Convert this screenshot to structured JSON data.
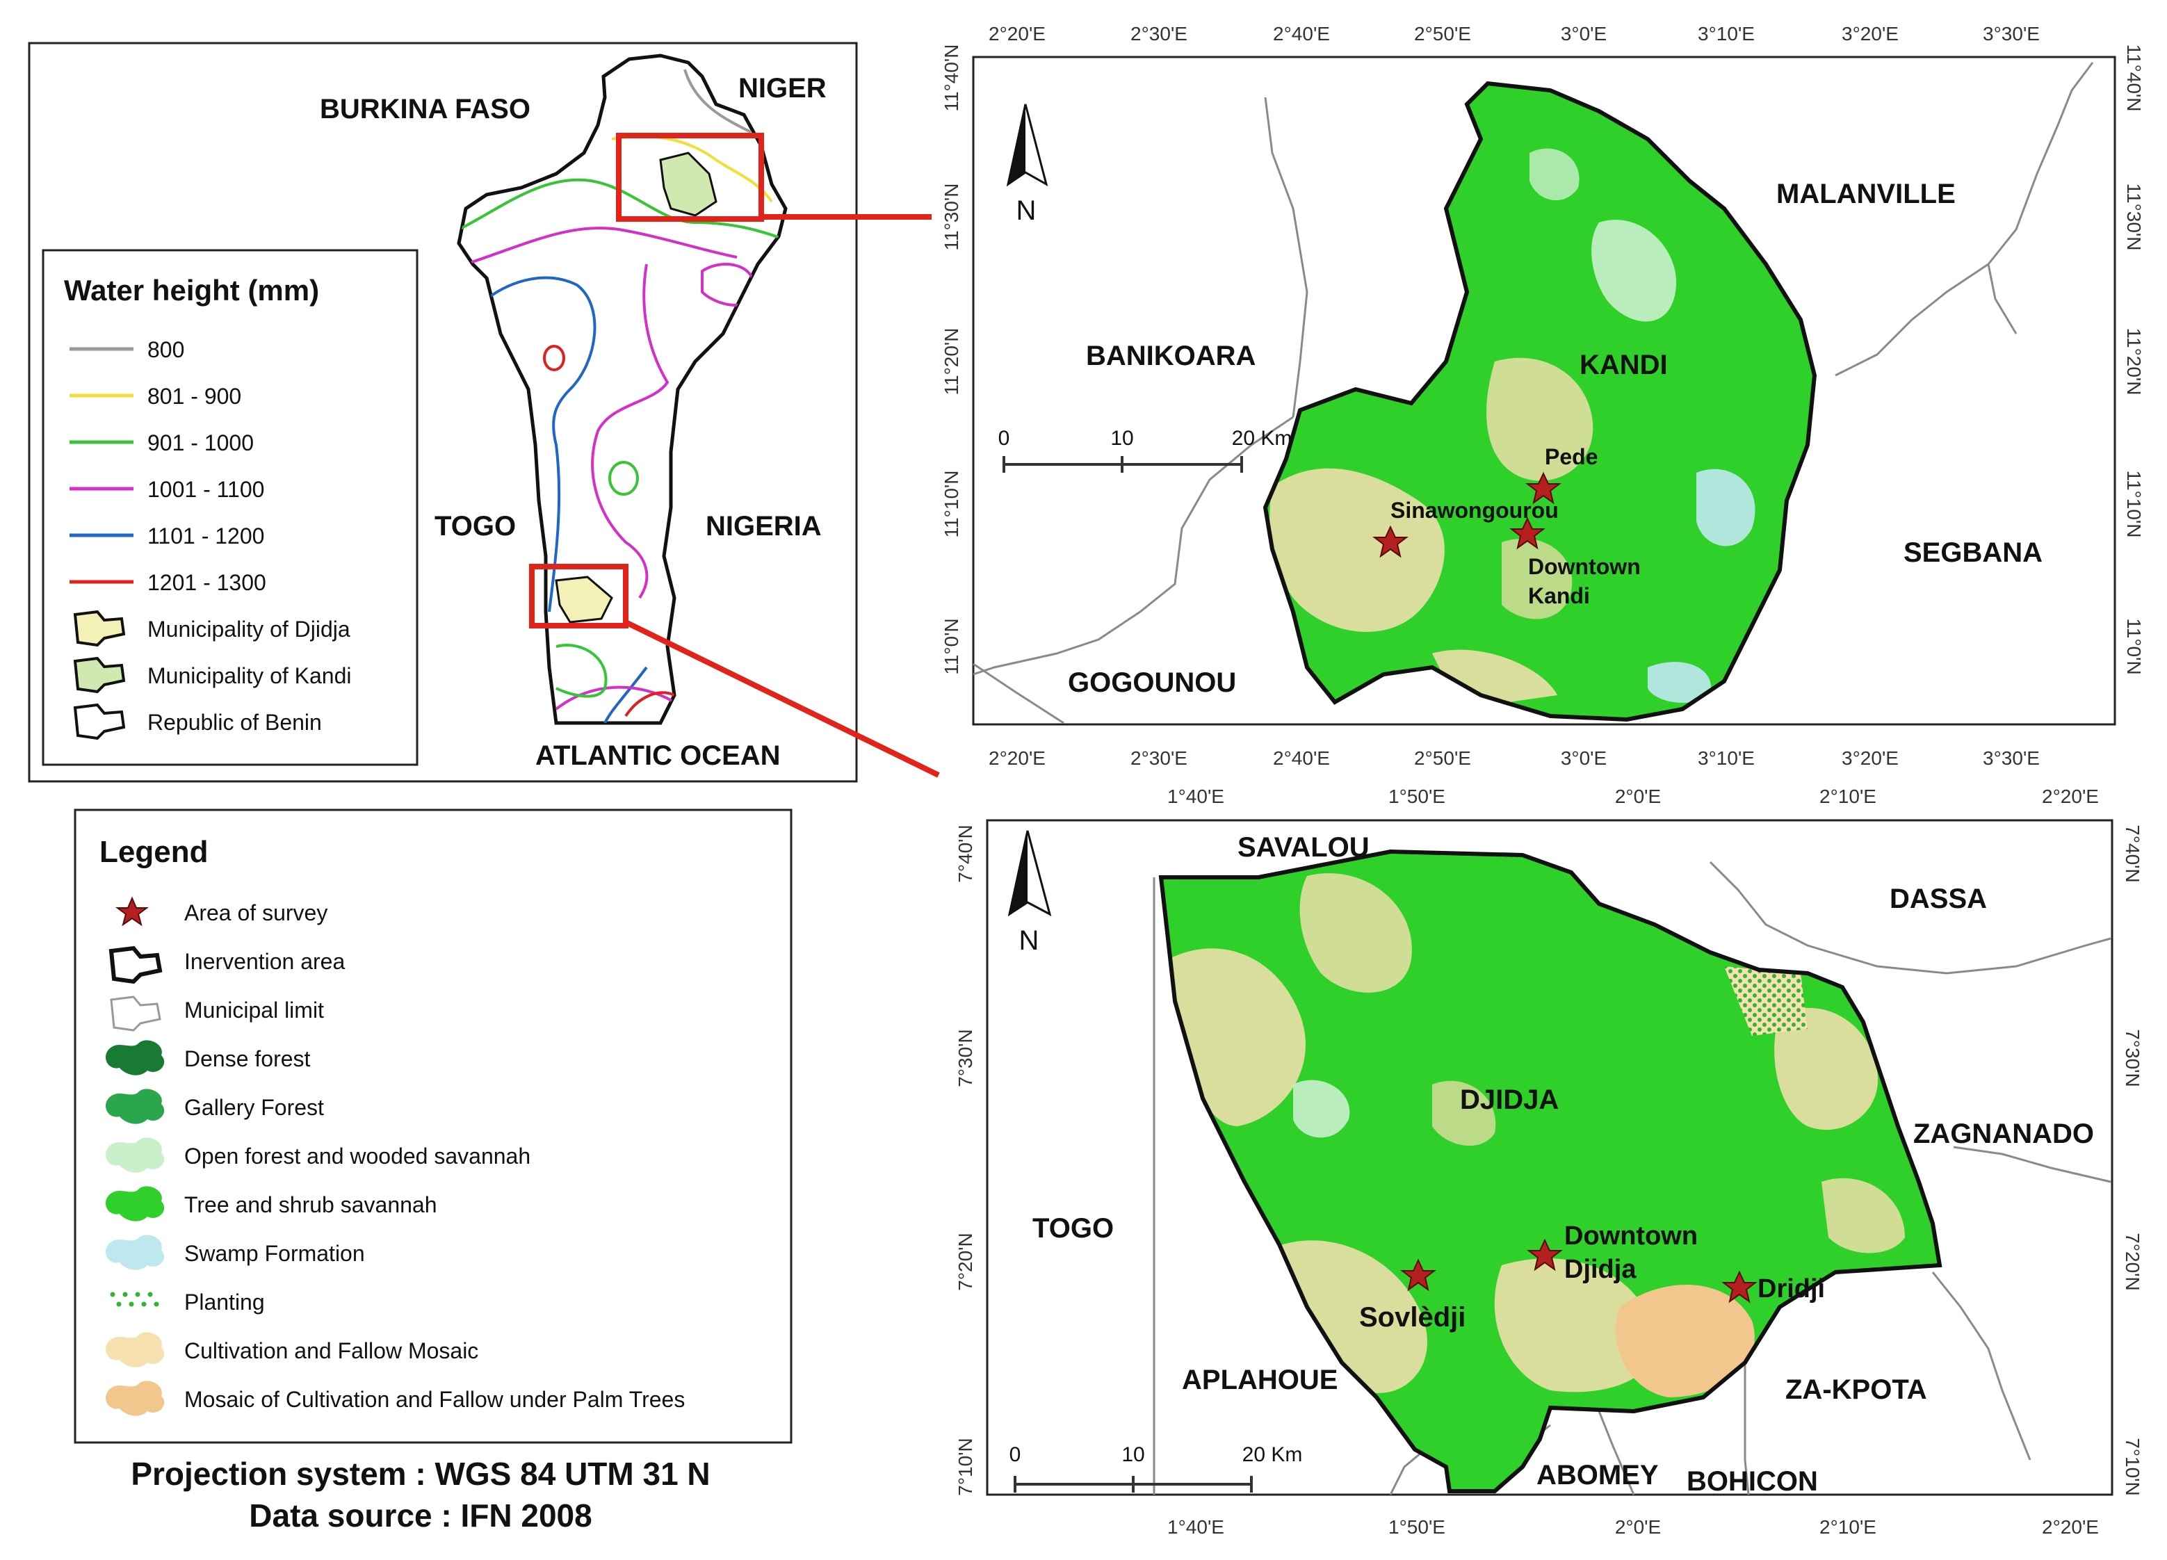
{
  "overview_map": {
    "countries": {
      "burkina_faso": "BURKINA FASO",
      "niger": "NIGER",
      "togo": "TOGO",
      "nigeria": "NIGERIA",
      "ocean": "ATLANTIC OCEAN"
    },
    "water_legend": {
      "title": "Water height (mm)",
      "items": [
        {
          "label": "800",
          "color": "#9a9a9a"
        },
        {
          "label": "801 - 900",
          "color": "#f2de3a"
        },
        {
          "label": "901 - 1000",
          "color": "#35c535"
        },
        {
          "label": "1001 - 1100",
          "color": "#d62fc8"
        },
        {
          "label": "1101 - 1200",
          "color": "#1f66c9"
        },
        {
          "label": "1201 - 1300",
          "color": "#e0201e"
        }
      ],
      "areas": [
        {
          "label": "Municipality of Djidja",
          "fill": "#f3f1b6"
        },
        {
          "label": "Municipality of Kandi",
          "fill": "#cfe9b1"
        },
        {
          "label": "Republic of Benin",
          "fill": "#ffffff"
        }
      ]
    }
  },
  "main_legend": {
    "title": "Legend",
    "items": [
      {
        "label": "Area of survey",
        "icon": "star-icon",
        "color": "#b3201f"
      },
      {
        "label": "Inervention area",
        "icon": "outline-thick-icon",
        "color": "#111111"
      },
      {
        "label": "Municipal limit",
        "icon": "outline-thin-icon",
        "color": "#9a9a9a"
      },
      {
        "label": "Dense forest",
        "icon": "blob-icon",
        "color": "#187a33"
      },
      {
        "label": "Gallery Forest",
        "icon": "blob-icon",
        "color": "#2aa64d"
      },
      {
        "label": "Open forest and wooded savannah",
        "icon": "blob-icon",
        "color": "#c9efcb"
      },
      {
        "label": "Tree and shrub savannah",
        "icon": "blob-icon",
        "color": "#2fd02a"
      },
      {
        "label": "Swamp Formation",
        "icon": "blob-icon",
        "color": "#bfe8ee"
      },
      {
        "label": "Planting",
        "icon": "dots-icon",
        "color": "#2fb52f"
      },
      {
        "label": "Cultivation and Fallow Mosaic",
        "icon": "blob-icon",
        "color": "#f7e0b0"
      },
      {
        "label": "Mosaic of Cultivation and Fallow under Palm Trees",
        "icon": "blob-icon",
        "color": "#f1c78e"
      }
    ]
  },
  "footer": {
    "projection": "Projection system : WGS 84 UTM 31 N",
    "source": "Data source : IFN 2008"
  },
  "kandi_map": {
    "north_label": "N",
    "lon_ticks": [
      "2°20'E",
      "2°30'E",
      "2°40'E",
      "2°50'E",
      "3°0'E",
      "3°10'E",
      "3°20'E",
      "3°30'E"
    ],
    "lat_ticks": [
      "11°40'N",
      "11°30'N",
      "11°20'N",
      "11°10'N",
      "11°0'N"
    ],
    "scale": {
      "zero": "0",
      "mid": "10",
      "end": "20 Km"
    },
    "regions": {
      "malanville": "MALANVILLE",
      "banikoara": "BANIKOARA",
      "kandi": "KANDI",
      "segbana": "SEGBANA",
      "gogounou": "GOGOUNOU"
    },
    "sites": {
      "pede": "Pede",
      "sinawongourou": "Sinawongourou",
      "downtown_1": "Downtown",
      "downtown_2": "Kandi"
    }
  },
  "djidja_map": {
    "north_label": "N",
    "lon_ticks": [
      "1°40'E",
      "1°50'E",
      "2°0'E",
      "2°10'E",
      "2°20'E"
    ],
    "lat_ticks": [
      "7°40'N",
      "7°30'N",
      "7°20'N",
      "7°10'N"
    ],
    "scale": {
      "zero": "0",
      "mid": "10",
      "end": "20 Km"
    },
    "regions": {
      "savalou": "SAVALOU",
      "dassa": "DASSA",
      "djidja": "DJIDJA",
      "zagnanado": "ZAGNANADO",
      "togo": "TOGO",
      "aplahoue": "APLAHOUE",
      "za_kpota": "ZA-KPOTA",
      "abomey": "ABOMEY",
      "bohicon": "BOHICON"
    },
    "sites": {
      "downtown_1": "Downtown",
      "downtown_2": "Djidja",
      "sovledji": "Sovlèdji",
      "dridji": "Dridji"
    }
  },
  "colors": {
    "highlight_box": "#e2231a",
    "savannah_green": "#2fd02a",
    "cultivation": "#f7e0b0",
    "star": "#b3201f"
  }
}
